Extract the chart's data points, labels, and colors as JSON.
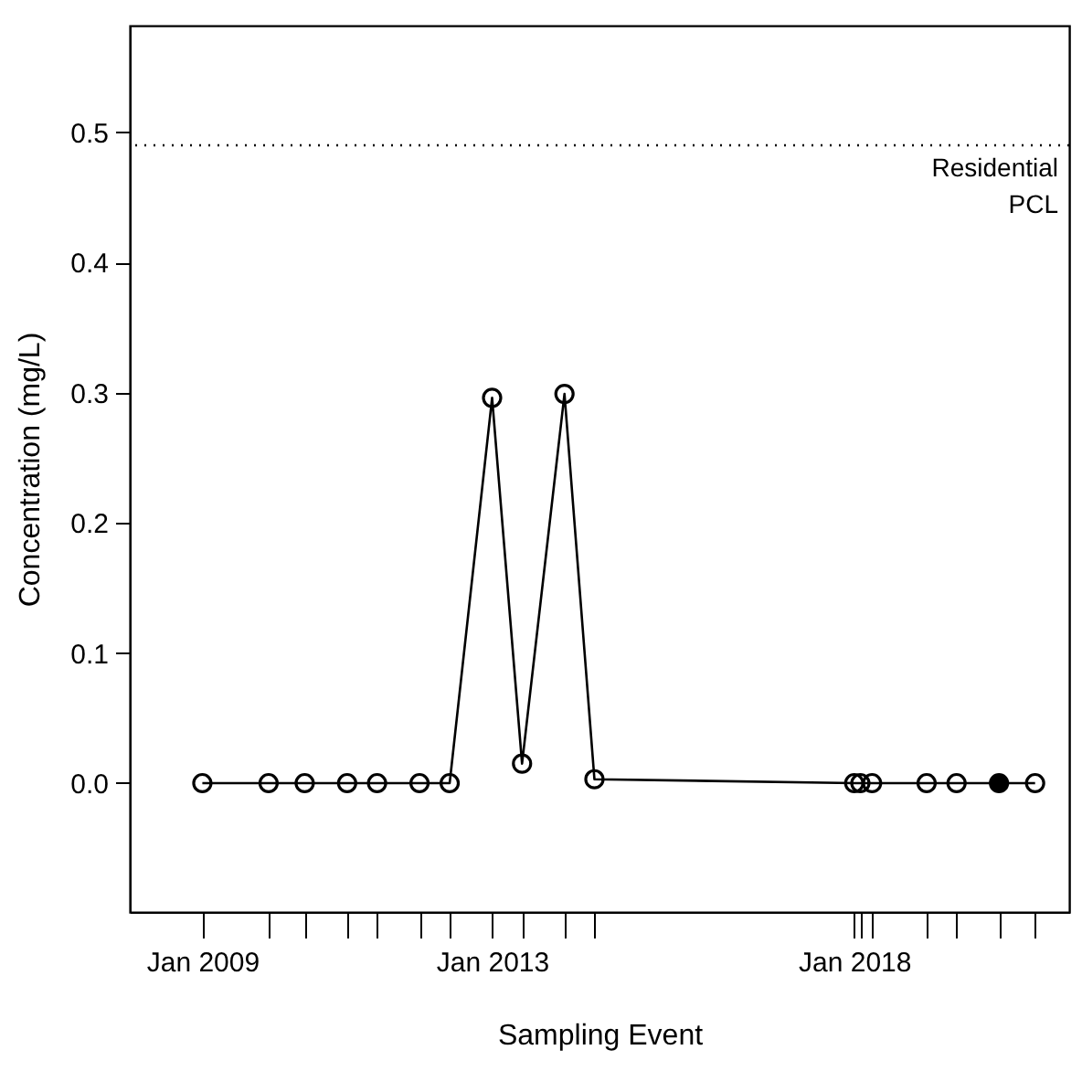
{
  "chart_data": {
    "type": "line",
    "xlabel": "Sampling Event",
    "ylabel": "Concentration (mg/L)",
    "xlim": [
      "2008-01-01",
      "2020-12-20"
    ],
    "ylim": [
      -0.099,
      0.582
    ],
    "yticks": [
      {
        "value": 0,
        "label": "0.0"
      },
      0.1,
      0.2,
      0.3,
      0.4,
      0.5
    ],
    "xticks": [
      {
        "value": "2009-01-01",
        "label": "Jan 2009"
      },
      {
        "value": "2009-12-01",
        "label": null
      },
      {
        "value": "2010-06-01",
        "label": null
      },
      {
        "value": "2011-01-01",
        "label": null
      },
      {
        "value": "2011-06-01",
        "label": null
      },
      {
        "value": "2012-01-01",
        "label": null
      },
      {
        "value": "2012-06-01",
        "label": null
      },
      {
        "value": "2013-01-01",
        "label": "Jan 2013"
      },
      {
        "value": "2013-06-01",
        "label": null
      },
      {
        "value": "2014-01-01",
        "label": null
      },
      {
        "value": "2014-06-01",
        "label": null
      },
      {
        "value": "2018-01-01",
        "label": "Jan 2018"
      },
      {
        "value": "2018-02-01",
        "label": null
      },
      {
        "value": "2018-04-01",
        "label": null
      },
      {
        "value": "2019-01-01",
        "label": null
      },
      {
        "value": "2019-06-01",
        "label": null
      },
      {
        "value": "2020-01-01",
        "label": null
      },
      {
        "value": "2020-07-01",
        "label": null
      }
    ],
    "series": [
      {
        "color": "#000000",
        "marker": "circle",
        "line_style": "solid",
        "x": [
          "2009-01-01",
          "2009-12-01",
          "2010-06-01",
          "2011-01-01",
          "2011-06-01",
          "2012-01-01",
          "2012-06-01",
          "2013-01-01",
          "2013-06-01",
          "2014-01-01",
          "2014-06-01",
          "2018-01-01",
          "2018-02-01",
          "2018-04-01",
          "2019-01-01",
          "2019-06-01",
          "2020-01-01",
          "2020-07-01"
        ],
        "values": [
          0,
          0,
          0,
          0,
          0,
          0,
          0,
          0.296,
          0.015,
          0.299,
          0.003,
          0,
          0,
          0,
          0,
          0,
          0,
          0
        ]
      },
      {
        "type": "scatter",
        "color": "#000000",
        "marker": "circle",
        "x": [
          "2020-01-01"
        ],
        "values": [
          0
        ]
      }
    ],
    "ref_lines": [
      {
        "axis": "y",
        "value": 0.49,
        "label": "Residential\nPCL",
        "line_style": "dotted",
        "color": "#000000"
      }
    ],
    "grid": false
  }
}
